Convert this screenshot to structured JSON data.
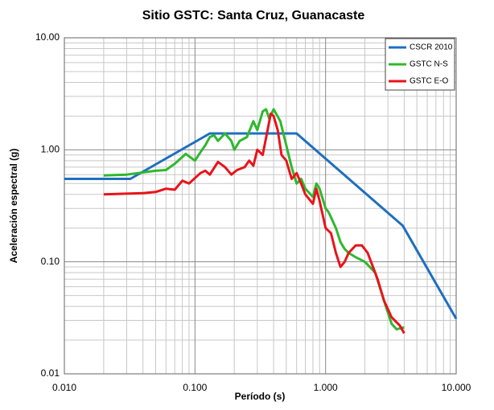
{
  "chart_data": {
    "type": "line",
    "title": "Sitio GSTC: Santa Cruz, Guanacaste",
    "x_label": "Período (s)",
    "y_label": "Aceleración espectral (g)",
    "log_x": true,
    "log_y": true,
    "grid": true,
    "legend": "upper right",
    "xlim": [
      0.01,
      10
    ],
    "ylim": [
      0.01,
      10
    ],
    "xticks": [
      {
        "value": 0.01,
        "label": "0.010"
      },
      {
        "value": 0.1,
        "label": "0.100"
      },
      {
        "value": 1,
        "label": "1.000"
      },
      {
        "value": 10,
        "label": "10.000"
      }
    ],
    "yticks": [
      {
        "value": 0.01,
        "label": "0.01"
      },
      {
        "value": 0.1,
        "label": "0.10"
      },
      {
        "value": 1,
        "label": "1.00"
      },
      {
        "value": 10,
        "label": "10.00"
      }
    ],
    "xminorticks": [
      0.02,
      0.03,
      0.04,
      0.05,
      0.06,
      0.07,
      0.08,
      0.09,
      0.2,
      0.3,
      0.4,
      0.5,
      0.6,
      0.7,
      0.8,
      0.9,
      2,
      3,
      4,
      5,
      6,
      7,
      8,
      9
    ],
    "yminorticks": [
      0.02,
      0.03,
      0.04,
      0.05,
      0.06,
      0.07,
      0.08,
      0.09,
      0.2,
      0.3,
      0.4,
      0.5,
      0.6,
      0.7,
      0.8,
      0.9,
      2,
      3,
      4,
      5,
      6,
      7,
      8,
      9
    ],
    "series": [
      {
        "name": "CSCR 2010",
        "color": "#1f6fbf",
        "x": [
          0.01,
          0.032,
          0.13,
          0.6,
          3.9,
          10
        ],
        "values": [
          0.55,
          0.55,
          1.4,
          1.4,
          0.21,
          0.031
        ]
      },
      {
        "name": "GSTC  N-S",
        "color": "#2eb82e",
        "x": [
          0.02,
          0.03,
          0.05,
          0.06,
          0.07,
          0.085,
          0.1,
          0.11,
          0.12,
          0.13,
          0.14,
          0.15,
          0.17,
          0.19,
          0.2,
          0.22,
          0.25,
          0.28,
          0.3,
          0.33,
          0.35,
          0.37,
          0.4,
          0.45,
          0.5,
          0.55,
          0.6,
          0.65,
          0.7,
          0.8,
          0.85,
          0.9,
          1.0,
          1.05,
          1.1,
          1.2,
          1.3,
          1.4,
          1.5,
          1.7,
          2.0,
          2.4,
          2.8,
          3.2,
          3.5,
          4.0
        ],
        "values": [
          0.59,
          0.6,
          0.65,
          0.66,
          0.75,
          0.92,
          0.8,
          0.95,
          1.1,
          1.3,
          1.35,
          1.2,
          1.4,
          1.2,
          1.0,
          1.2,
          1.3,
          1.8,
          1.5,
          2.2,
          2.3,
          1.9,
          2.3,
          1.8,
          1.1,
          0.7,
          0.5,
          0.55,
          0.45,
          0.38,
          0.5,
          0.45,
          0.3,
          0.28,
          0.25,
          0.2,
          0.15,
          0.13,
          0.12,
          0.11,
          0.1,
          0.08,
          0.045,
          0.028,
          0.025,
          0.026
        ]
      },
      {
        "name": "GSTC  E-O",
        "color": "#e8141b",
        "x": [
          0.02,
          0.04,
          0.05,
          0.06,
          0.07,
          0.08,
          0.09,
          0.11,
          0.12,
          0.13,
          0.15,
          0.17,
          0.19,
          0.21,
          0.24,
          0.26,
          0.28,
          0.3,
          0.33,
          0.36,
          0.38,
          0.4,
          0.43,
          0.46,
          0.5,
          0.55,
          0.6,
          0.65,
          0.7,
          0.8,
          0.85,
          0.9,
          1.0,
          1.1,
          1.2,
          1.3,
          1.4,
          1.5,
          1.7,
          1.9,
          2.1,
          2.5,
          2.8,
          3.2,
          3.7,
          4.0
        ],
        "values": [
          0.4,
          0.41,
          0.42,
          0.45,
          0.44,
          0.53,
          0.5,
          0.62,
          0.65,
          0.6,
          0.78,
          0.7,
          0.6,
          0.66,
          0.7,
          0.8,
          0.72,
          1.0,
          0.9,
          1.5,
          2.1,
          2.0,
          1.5,
          0.9,
          0.8,
          0.55,
          0.62,
          0.5,
          0.4,
          0.33,
          0.45,
          0.35,
          0.2,
          0.18,
          0.12,
          0.09,
          0.1,
          0.12,
          0.14,
          0.14,
          0.12,
          0.07,
          0.045,
          0.032,
          0.027,
          0.023
        ]
      }
    ]
  }
}
